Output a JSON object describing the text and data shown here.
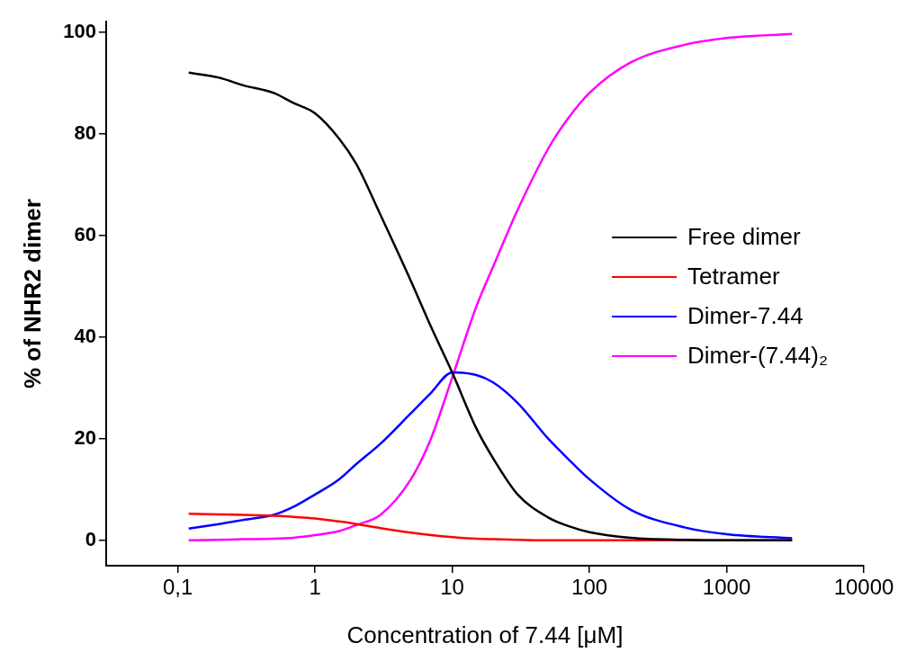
{
  "chart_data": {
    "type": "line",
    "xlabel": "Concentration of 7.44 [μM]",
    "ylabel": "% of NHR2 dimer",
    "log": "x",
    "xlim": [
      0.03,
      10000
    ],
    "xticks": [
      {
        "value": 0.1,
        "label": "0,1"
      },
      1,
      10,
      100,
      1000,
      10000
    ],
    "ylim": [
      -5,
      102
    ],
    "yticks": [
      0,
      20,
      40,
      60,
      80,
      100
    ],
    "grid": false,
    "legend": "right",
    "marker": "none",
    "line_style": "solid",
    "x": [
      0.12,
      0.2,
      0.3,
      0.5,
      0.7,
      1,
      1.5,
      2,
      3,
      5,
      7,
      10,
      15,
      20,
      30,
      50,
      70,
      100,
      200,
      500,
      1000,
      3000
    ],
    "series": [
      {
        "name": "Free dimer",
        "color": "#000000",
        "values": [
          92,
          91,
          89.5,
          88,
          86,
          84,
          79,
          74,
          64,
          51,
          42,
          33,
          22,
          16,
          9,
          4.5,
          2.8,
          1.6,
          0.5,
          0.1,
          0,
          0
        ]
      },
      {
        "name": "Tetramer",
        "color": "#ff0000",
        "values": [
          5.2,
          5.1,
          5,
          4.8,
          4.6,
          4.3,
          3.7,
          3.2,
          2.4,
          1.5,
          1,
          0.6,
          0.3,
          0.2,
          0.1,
          0,
          0,
          0,
          0,
          0,
          0,
          0
        ]
      },
      {
        "name": "Dimer-7.44",
        "color": "#0000ff",
        "values": [
          2.3,
          3.2,
          4,
          5,
          6.6,
          9,
          12,
          15,
          19,
          25,
          29,
          33,
          32.5,
          31,
          27,
          20,
          16,
          12,
          6,
          2.5,
          1.2,
          0.4
        ]
      },
      {
        "name": "Dimer-(7.44)₂",
        "color": "#ff00ff",
        "values": [
          0,
          0.1,
          0.2,
          0.3,
          0.5,
          1,
          1.8,
          3,
          5,
          12,
          20,
          32,
          46,
          54,
          65,
          77,
          83,
          88,
          94,
          97.5,
          98.8,
          99.6
        ]
      }
    ]
  }
}
